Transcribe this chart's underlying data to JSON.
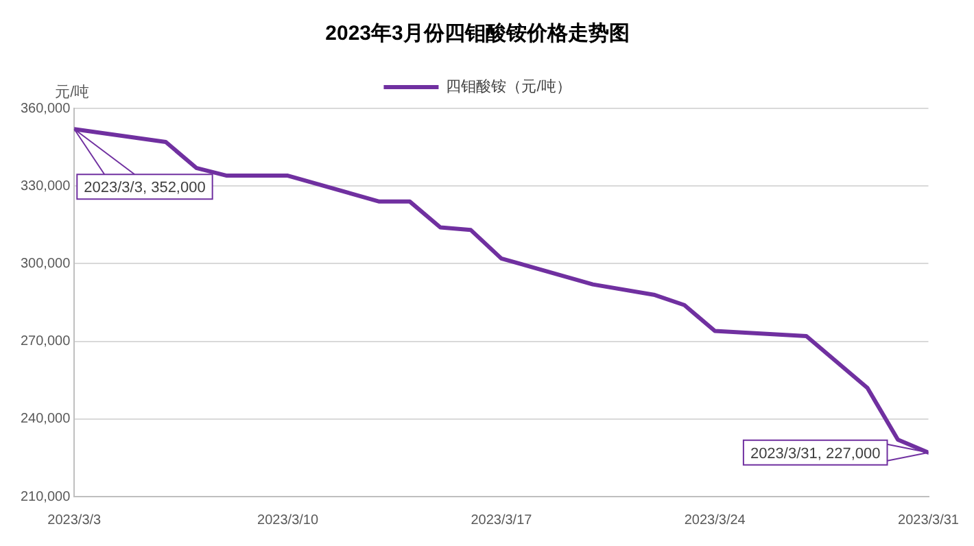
{
  "chart_data": {
    "type": "line",
    "title": "2023年3月份四钼酸铵价格走势图",
    "ylabel": "元/吨",
    "x": [
      "2023-03-03",
      "2023-03-06",
      "2023-03-07",
      "2023-03-08",
      "2023-03-10",
      "2023-03-13",
      "2023-03-14",
      "2023-03-15",
      "2023-03-16",
      "2023-03-17",
      "2023-03-20",
      "2023-03-22",
      "2023-03-23",
      "2023-03-24",
      "2023-03-27",
      "2023-03-29",
      "2023-03-30",
      "2023-03-31"
    ],
    "series": [
      {
        "name": "四钼酸铵（元/吨）",
        "color": "#7030a0",
        "values": [
          352000,
          347000,
          337000,
          334000,
          334000,
          324000,
          324000,
          314000,
          313000,
          302000,
          292000,
          288000,
          284000,
          274000,
          272000,
          252000,
          232000,
          227000
        ]
      }
    ],
    "xlim": [
      "2023-03-03",
      "2023-03-31"
    ],
    "xticks": [
      {
        "value": "2023-03-03",
        "label": "2023/3/3"
      },
      {
        "value": "2023-03-10",
        "label": "2023/3/10"
      },
      {
        "value": "2023-03-17",
        "label": "2023/3/17"
      },
      {
        "value": "2023-03-24",
        "label": "2023/3/24"
      },
      {
        "value": "2023-03-31",
        "label": "2023/3/31"
      }
    ],
    "ylim": [
      210000,
      360000
    ],
    "yticks": [
      {
        "value": 210000,
        "label": "210,000"
      },
      {
        "value": 240000,
        "label": "240,000"
      },
      {
        "value": 270000,
        "label": "270,000"
      },
      {
        "value": 300000,
        "label": "300,000"
      },
      {
        "value": 330000,
        "label": "330,000"
      },
      {
        "value": 360000,
        "label": "360,000"
      }
    ],
    "annotations": [
      {
        "text": "2023/3/3, 352,000",
        "x": "2023-03-03",
        "y": 352000
      },
      {
        "text": "2023/3/31, 227,000",
        "x": "2023-03-31",
        "y": 227000
      }
    ],
    "grid": "y",
    "legend": "top",
    "marker": "none",
    "line_style": "solid"
  }
}
